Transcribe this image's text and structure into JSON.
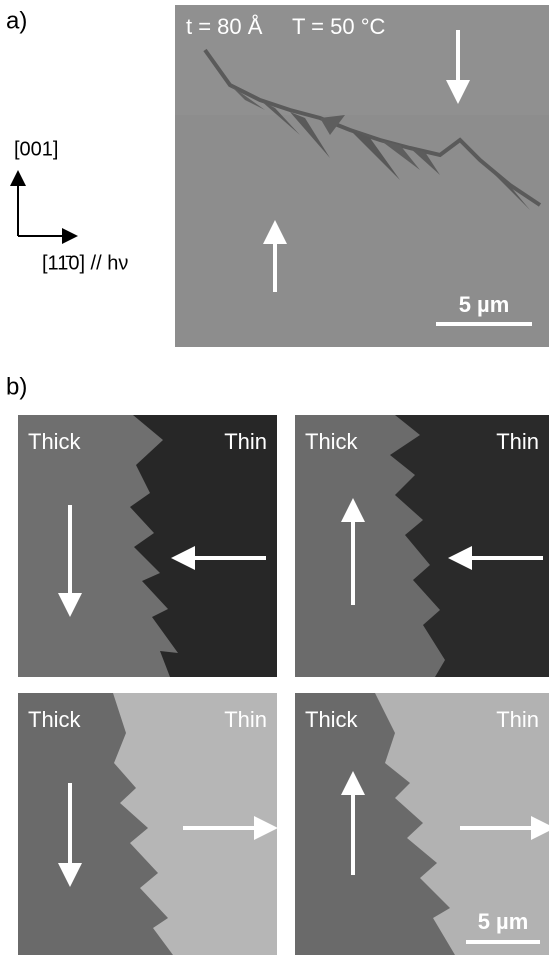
{
  "panel_a": {
    "label": "a)",
    "thickness": "t = 80 Å",
    "temperature": "T = 50 °C",
    "scale_bar": "5 µm",
    "axes": {
      "vertical": "[001]",
      "horizontal": "[11̄0] // hν"
    }
  },
  "panel_b": {
    "label": "b)",
    "scale_bar": "5 µm",
    "images": [
      {
        "left": "Thick",
        "right": "Thin"
      },
      {
        "left": "Thick",
        "right": "Thin"
      },
      {
        "left": "Thick",
        "right": "Thin"
      },
      {
        "left": "Thick",
        "right": "Thin"
      }
    ]
  }
}
